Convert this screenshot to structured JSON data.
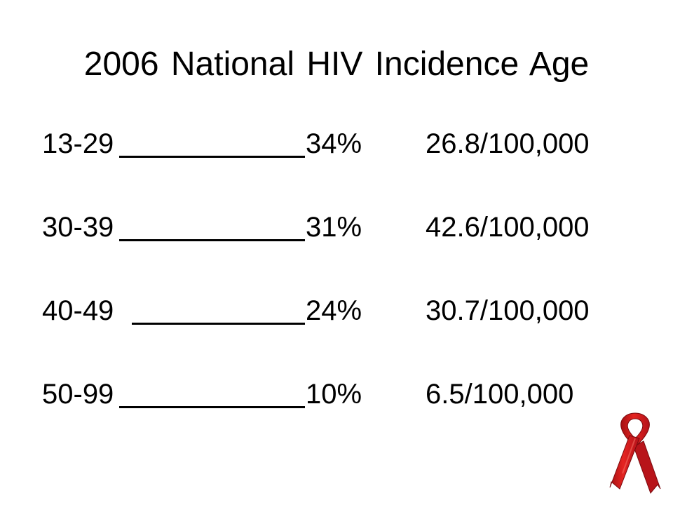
{
  "slide": {
    "title": "2006 National HIV Incidence Age",
    "rows": [
      {
        "age": "13-29",
        "percent": "34%",
        "rate": "26.8/100,000"
      },
      {
        "age": "30-39",
        "percent": "31%",
        "rate": "42.6/100,000"
      },
      {
        "age": "40-49",
        "percent": "24%",
        "rate": "30.7/100,000"
      },
      {
        "age": "50-99",
        "percent": "10%",
        "rate": "6.5/100,000"
      }
    ],
    "ribbon_icon": "red-awareness-ribbon-icon",
    "colors": {
      "text": "#000000",
      "background": "#ffffff",
      "ribbon": "#d81e1e"
    }
  }
}
